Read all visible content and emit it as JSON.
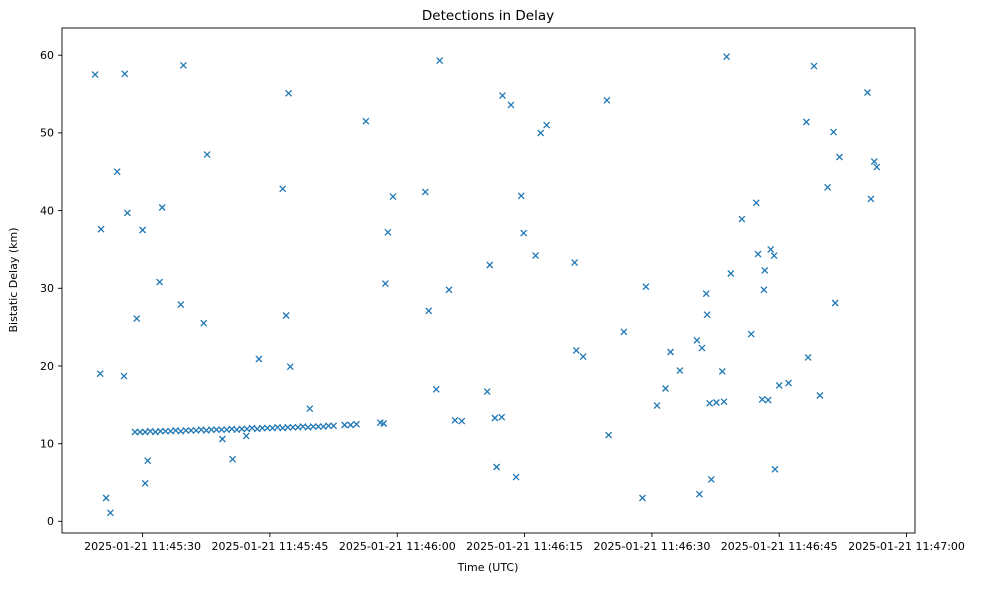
{
  "chart_data": {
    "type": "scatter",
    "title": "Detections in Delay",
    "xlabel": "Time (UTC)",
    "ylabel": "Bistatic Delay (km)",
    "marker": "x",
    "marker_color": "#1f77b4",
    "marker_size": 6,
    "grid": false,
    "legend": "none",
    "x_unit": "seconds after 2025-01-21 11:45:00 UTC",
    "xlim": [
      20.5,
      121.0
    ],
    "ylim": [
      -1.5,
      63.5
    ],
    "y_ticks": [
      0,
      10,
      20,
      30,
      40,
      50,
      60
    ],
    "x_ticks": [
      {
        "value": 30,
        "label": "2025-01-21 11:45:30"
      },
      {
        "value": 45,
        "label": "2025-01-21 11:45:45"
      },
      {
        "value": 60,
        "label": "2025-01-21 11:46:00"
      },
      {
        "value": 75,
        "label": "2025-01-21 11:46:15"
      },
      {
        "value": 90,
        "label": "2025-01-21 11:46:30"
      },
      {
        "value": 105,
        "label": "2025-01-21 11:46:45"
      },
      {
        "value": 120,
        "label": "2025-01-21 11:47:00"
      }
    ],
    "points": [
      [
        24.4,
        57.5
      ],
      [
        25.0,
        19.0
      ],
      [
        25.1,
        37.6
      ],
      [
        25.7,
        3.0
      ],
      [
        26.2,
        1.1
      ],
      [
        27.0,
        45.0
      ],
      [
        27.8,
        18.7
      ],
      [
        27.9,
        57.6
      ],
      [
        28.2,
        39.7
      ],
      [
        29.3,
        26.1
      ],
      [
        30.0,
        37.5
      ],
      [
        30.3,
        4.9
      ],
      [
        30.6,
        7.8
      ],
      [
        32.0,
        30.8
      ],
      [
        32.3,
        40.4
      ],
      [
        34.5,
        27.9
      ],
      [
        34.8,
        58.7
      ],
      [
        37.2,
        25.5
      ],
      [
        37.6,
        47.2
      ],
      [
        39.4,
        10.6
      ],
      [
        40.6,
        8.0
      ],
      [
        42.2,
        11.0
      ],
      [
        43.7,
        20.9
      ],
      [
        46.5,
        42.8
      ],
      [
        46.9,
        26.5
      ],
      [
        47.2,
        55.1
      ],
      [
        47.4,
        19.9
      ],
      [
        49.7,
        14.5
      ],
      [
        56.3,
        51.5
      ],
      [
        58.6,
        30.6
      ],
      [
        58.9,
        37.2
      ],
      [
        59.5,
        41.8
      ],
      [
        63.3,
        42.4
      ],
      [
        63.7,
        27.1
      ],
      [
        64.6,
        17.0
      ],
      [
        65.0,
        59.3
      ],
      [
        66.1,
        29.8
      ],
      [
        66.8,
        13.0
      ],
      [
        67.6,
        12.9
      ],
      [
        70.6,
        16.7
      ],
      [
        70.9,
        33.0
      ],
      [
        71.5,
        13.3
      ],
      [
        71.7,
        7.0
      ],
      [
        72.3,
        13.4
      ],
      [
        72.4,
        54.8
      ],
      [
        73.4,
        53.6
      ],
      [
        74.0,
        5.7
      ],
      [
        74.6,
        41.9
      ],
      [
        74.9,
        37.1
      ],
      [
        76.3,
        34.2
      ],
      [
        76.9,
        50.0
      ],
      [
        77.6,
        51.0
      ],
      [
        80.9,
        33.3
      ],
      [
        81.1,
        22.0
      ],
      [
        81.9,
        21.2
      ],
      [
        84.7,
        54.2
      ],
      [
        84.9,
        11.1
      ],
      [
        86.7,
        24.4
      ],
      [
        88.9,
        3.0
      ],
      [
        89.3,
        30.2
      ],
      [
        90.6,
        14.9
      ],
      [
        91.6,
        17.1
      ],
      [
        92.2,
        21.8
      ],
      [
        93.3,
        19.4
      ],
      [
        95.3,
        23.3
      ],
      [
        95.6,
        3.5
      ],
      [
        95.9,
        22.3
      ],
      [
        96.4,
        29.3
      ],
      [
        96.5,
        26.6
      ],
      [
        96.8,
        15.2
      ],
      [
        97.0,
        5.4
      ],
      [
        97.6,
        15.3
      ],
      [
        98.3,
        19.3
      ],
      [
        98.5,
        15.4
      ],
      [
        98.8,
        59.8
      ],
      [
        99.3,
        31.9
      ],
      [
        100.6,
        38.9
      ],
      [
        101.7,
        24.1
      ],
      [
        102.3,
        41.0
      ],
      [
        102.5,
        34.4
      ],
      [
        103.0,
        15.7
      ],
      [
        103.2,
        29.8
      ],
      [
        103.3,
        32.3
      ],
      [
        103.7,
        15.6
      ],
      [
        104.0,
        35.0
      ],
      [
        104.4,
        34.2
      ],
      [
        104.5,
        6.7
      ],
      [
        105.0,
        17.5
      ],
      [
        106.1,
        17.8
      ],
      [
        108.2,
        51.4
      ],
      [
        108.4,
        21.1
      ],
      [
        109.1,
        58.6
      ],
      [
        109.8,
        16.2
      ],
      [
        110.7,
        43.0
      ],
      [
        111.4,
        50.1
      ],
      [
        111.6,
        28.1
      ],
      [
        112.1,
        46.9
      ],
      [
        115.4,
        55.2
      ],
      [
        115.8,
        41.5
      ],
      [
        116.2,
        46.3
      ],
      [
        116.5,
        45.6
      ],
      [
        29.1,
        11.5
      ],
      [
        29.7,
        11.5
      ],
      [
        30.3,
        11.5
      ],
      [
        30.9,
        11.6
      ],
      [
        31.5,
        11.5
      ],
      [
        32.1,
        11.6
      ],
      [
        32.7,
        11.6
      ],
      [
        33.3,
        11.6
      ],
      [
        33.9,
        11.7
      ],
      [
        34.5,
        11.6
      ],
      [
        35.1,
        11.7
      ],
      [
        35.7,
        11.7
      ],
      [
        36.3,
        11.7
      ],
      [
        36.9,
        11.8
      ],
      [
        37.5,
        11.7
      ],
      [
        38.1,
        11.8
      ],
      [
        38.7,
        11.8
      ],
      [
        39.3,
        11.8
      ],
      [
        39.9,
        11.8
      ],
      [
        40.5,
        11.9
      ],
      [
        41.1,
        11.8
      ],
      [
        41.7,
        11.9
      ],
      [
        42.3,
        11.9
      ],
      [
        42.9,
        12.0
      ],
      [
        43.5,
        11.9
      ],
      [
        44.1,
        12.0
      ],
      [
        44.7,
        12.0
      ],
      [
        45.3,
        12.0
      ],
      [
        45.9,
        12.1
      ],
      [
        46.5,
        12.0
      ],
      [
        47.1,
        12.1
      ],
      [
        47.7,
        12.1
      ],
      [
        48.3,
        12.1
      ],
      [
        48.9,
        12.2
      ],
      [
        49.5,
        12.1
      ],
      [
        50.1,
        12.2
      ],
      [
        50.7,
        12.2
      ],
      [
        51.3,
        12.2
      ],
      [
        51.9,
        12.3
      ],
      [
        52.5,
        12.3
      ],
      [
        53.8,
        12.4
      ],
      [
        54.5,
        12.4
      ],
      [
        55.2,
        12.5
      ],
      [
        58.0,
        12.7
      ],
      [
        58.4,
        12.6
      ]
    ]
  }
}
